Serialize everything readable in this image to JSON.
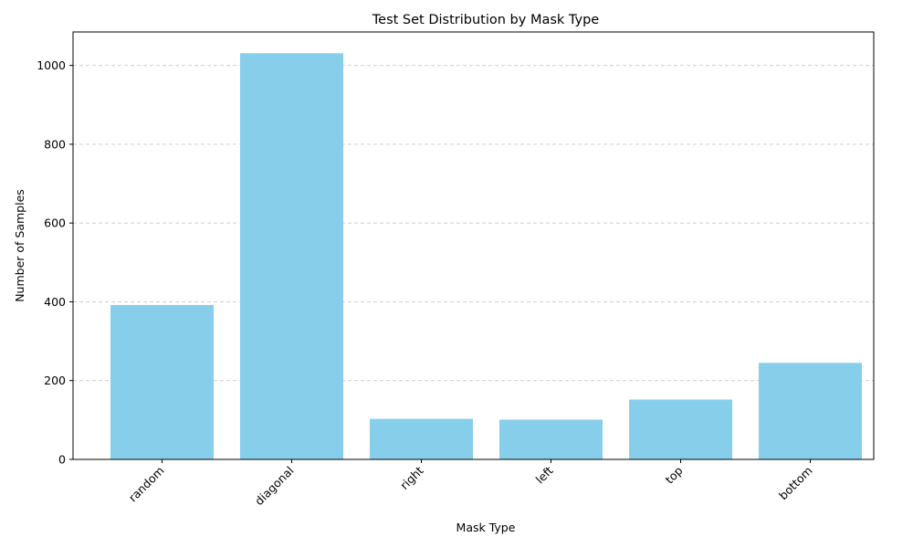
{
  "chart_data": {
    "type": "bar",
    "title": "Test Set Distribution by Mask Type",
    "xlabel": "Mask Type",
    "ylabel": "Number of Samples",
    "categories": [
      "random",
      "diagonal",
      "right",
      "left",
      "top",
      "bottom"
    ],
    "values": [
      392,
      1031,
      103,
      101,
      152,
      245
    ],
    "ylim": [
      0,
      1085
    ],
    "yticks": [
      0,
      200,
      400,
      600,
      800,
      1000
    ],
    "grid": "y-dashed",
    "bar_color": "#87ceeb"
  }
}
